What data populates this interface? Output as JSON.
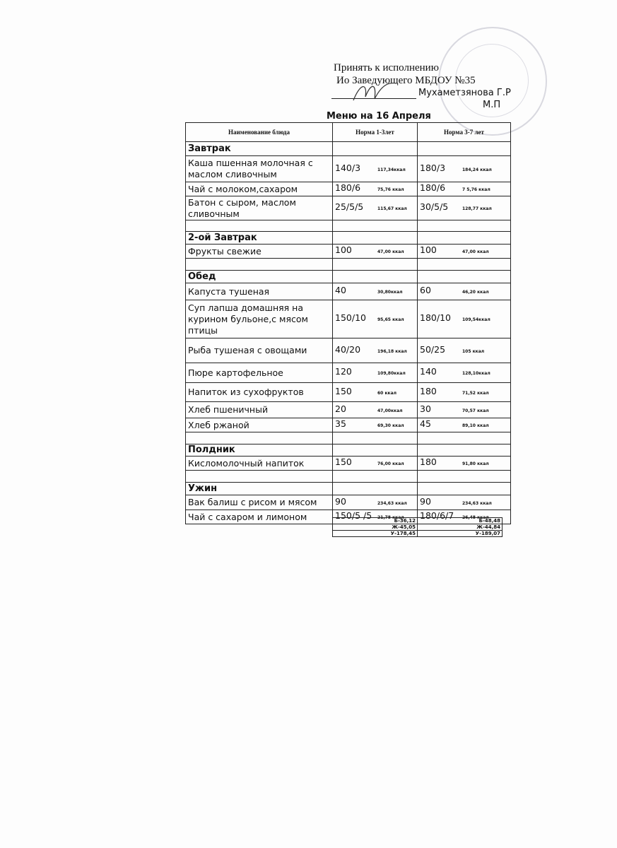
{
  "approval": {
    "line1": "Принять к исполнению",
    "line2": "Ио Заведующего МБДОУ №35",
    "name": "Мухаметзянова Г.Р",
    "mp": "М.П"
  },
  "title": "Меню на    16 Апреля",
  "headers": [
    "Наименование блюда",
    "Норма 1-3лет",
    "Норма 3-7 лет"
  ],
  "rows": [
    {
      "type": "section",
      "name": "Завтрак"
    },
    {
      "type": "dish",
      "name": "Каша пшенная молочная с маслом сливочным",
      "n1": "140/3",
      "k1": "117,34ккал",
      "n2": "180/3",
      "k2": "184,24 ккал"
    },
    {
      "type": "dish",
      "name": "Чай  с молоком,сахаром",
      "n1": "180/6",
      "k1": "75,76 ккал",
      "n2": "180/6",
      "k2": "7   5,76 ккал"
    },
    {
      "type": "dish",
      "name": "Батон с сыром,  маслом сливочным",
      "n1": "25/5/5",
      "k1": "115,67 ккал",
      "n2": "30/5/5",
      "k2": "128,77 ккал"
    },
    {
      "type": "empty"
    },
    {
      "type": "section",
      "name": "2-ой Завтрак"
    },
    {
      "type": "dish",
      "name": "Фрукты свежие",
      "n1": "100",
      "k1": "47,00 ккал",
      "n2": "100",
      "k2": "47,00 ккал"
    },
    {
      "type": "empty"
    },
    {
      "type": "section",
      "name": "Обед"
    },
    {
      "type": "dish",
      "name": "Капуста тушеная",
      "n1": "40",
      "k1": "30,80ккал",
      "n2": "60",
      "k2": "46,20 ккал"
    },
    {
      "type": "dish",
      "name": "Суп лапша домашняя на курином бульоне,с мясом птицы",
      "n1": "150/10",
      "k1": "95,65 ккал",
      "n2": "180/10",
      "k2": "109,54ккал"
    },
    {
      "type": "dish",
      "name": "Рыба тушеная с овощами",
      "n1": "40/20",
      "k1": "196,18 ккал",
      "n2": "50/25",
      "k2": "105  ккал"
    },
    {
      "type": "dish",
      "name": "Пюре картофельное",
      "n1": "120",
      "k1": "109,80ккал",
      "n2": "140",
      "k2": "128,10ккал"
    },
    {
      "type": "dish",
      "name": "Напиток из сухофруктов",
      "n1": "150",
      "k1": "60 ккал",
      "n2": "180",
      "k2": "71,52 ккал"
    },
    {
      "type": "dish",
      "name": "Хлеб пшеничный",
      "n1": "20",
      "k1": "47,00ккал",
      "n2": "30",
      "k2": "70,57 ккал"
    },
    {
      "type": "dish",
      "name": "Хлеб ржаной",
      "n1": "35",
      "k1": "69,30 ккал",
      "n2": "45",
      "k2": "89,10 ккал"
    },
    {
      "type": "empty"
    },
    {
      "type": "section",
      "name": "Полдник"
    },
    {
      "type": "dish",
      "name": "Кисломолочный напиток",
      "n1": "150",
      "k1": "76,00 ккал",
      "n2": "180",
      "k2": "91,80 ккал"
    },
    {
      "type": "empty"
    },
    {
      "type": "section",
      "name": "Ужин"
    },
    {
      "type": "dish",
      "name": "Вак балиш с рисом и мясом",
      "n1": "90",
      "k1": "234,63 ккал",
      "n2": "90",
      "k2": "234,63 ккал"
    },
    {
      "type": "dish",
      "name": "Чай с сахаром  и лимоном",
      "n1": "150/5 /5",
      "k1": "21,78 ккал",
      "n2": "180/6/7",
      "k2": "26,48 ккал"
    }
  ],
  "totals": [
    [
      "Б-36,12",
      "Б-48,48"
    ],
    [
      "Ж-45,05",
      "Ж-44,84"
    ],
    [
      "У-178,45",
      "У-189,07"
    ]
  ],
  "stamp": {
    "text": "МБДОУ «Центр развития ребенка» Р41000141 РТ"
  }
}
